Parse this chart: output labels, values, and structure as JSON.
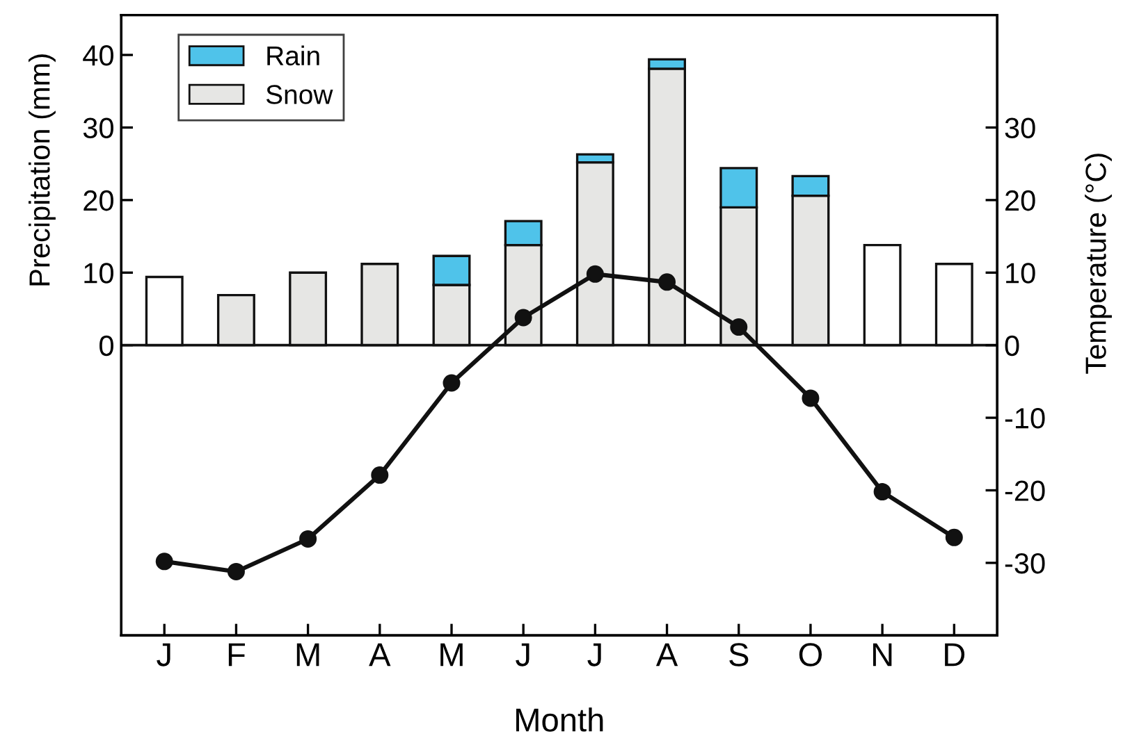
{
  "chart_data": {
    "type": "bar",
    "stacked": true,
    "xlabel": "Month",
    "ylabel": "Precipitation (mm)",
    "y2label": "Temperature (°C)",
    "categories": [
      "J",
      "F",
      "M",
      "A",
      "M",
      "J",
      "J",
      "A",
      "S",
      "O",
      "N",
      "D"
    ],
    "series": [
      {
        "name": "Snow",
        "color": "#e6e6e4",
        "colors": [
          "#ffffff",
          "#e6e6e4",
          "#e6e6e4",
          "#e6e6e4",
          "#e6e6e4",
          "#e6e6e4",
          "#e6e6e4",
          "#e6e6e4",
          "#e6e6e4",
          "#e6e6e4",
          "#ffffff",
          "#ffffff"
        ],
        "values": [
          9.4,
          6.9,
          10.0,
          11.2,
          8.3,
          13.8,
          25.2,
          38.1,
          19.0,
          20.6,
          13.8,
          11.2
        ]
      },
      {
        "name": "Rain",
        "color": "#4fc3ea",
        "values": [
          null,
          null,
          null,
          null,
          4.0,
          3.3,
          1.1,
          1.3,
          5.4,
          2.7,
          null,
          null
        ]
      },
      {
        "type": "line",
        "axis": "y2",
        "color": "#111111",
        "values": [
          -29.8,
          -31.2,
          -26.7,
          -17.9,
          -5.2,
          3.8,
          9.8,
          8.7,
          2.5,
          -7.3,
          -20.2,
          -26.5
        ]
      }
    ],
    "ylim": [
      -40,
      45.5
    ],
    "yticks": [
      0,
      10,
      20,
      30,
      40
    ],
    "y2lim": [
      -40,
      45.5
    ],
    "y2ticks": [
      -30,
      -20,
      -10,
      0,
      10,
      20,
      30
    ],
    "ref_lines": [
      {
        "axis": "y",
        "value": 0,
        "color": "#111111"
      }
    ],
    "marker": "circle",
    "line_style": "solid",
    "legend": "top left",
    "grid": false
  }
}
